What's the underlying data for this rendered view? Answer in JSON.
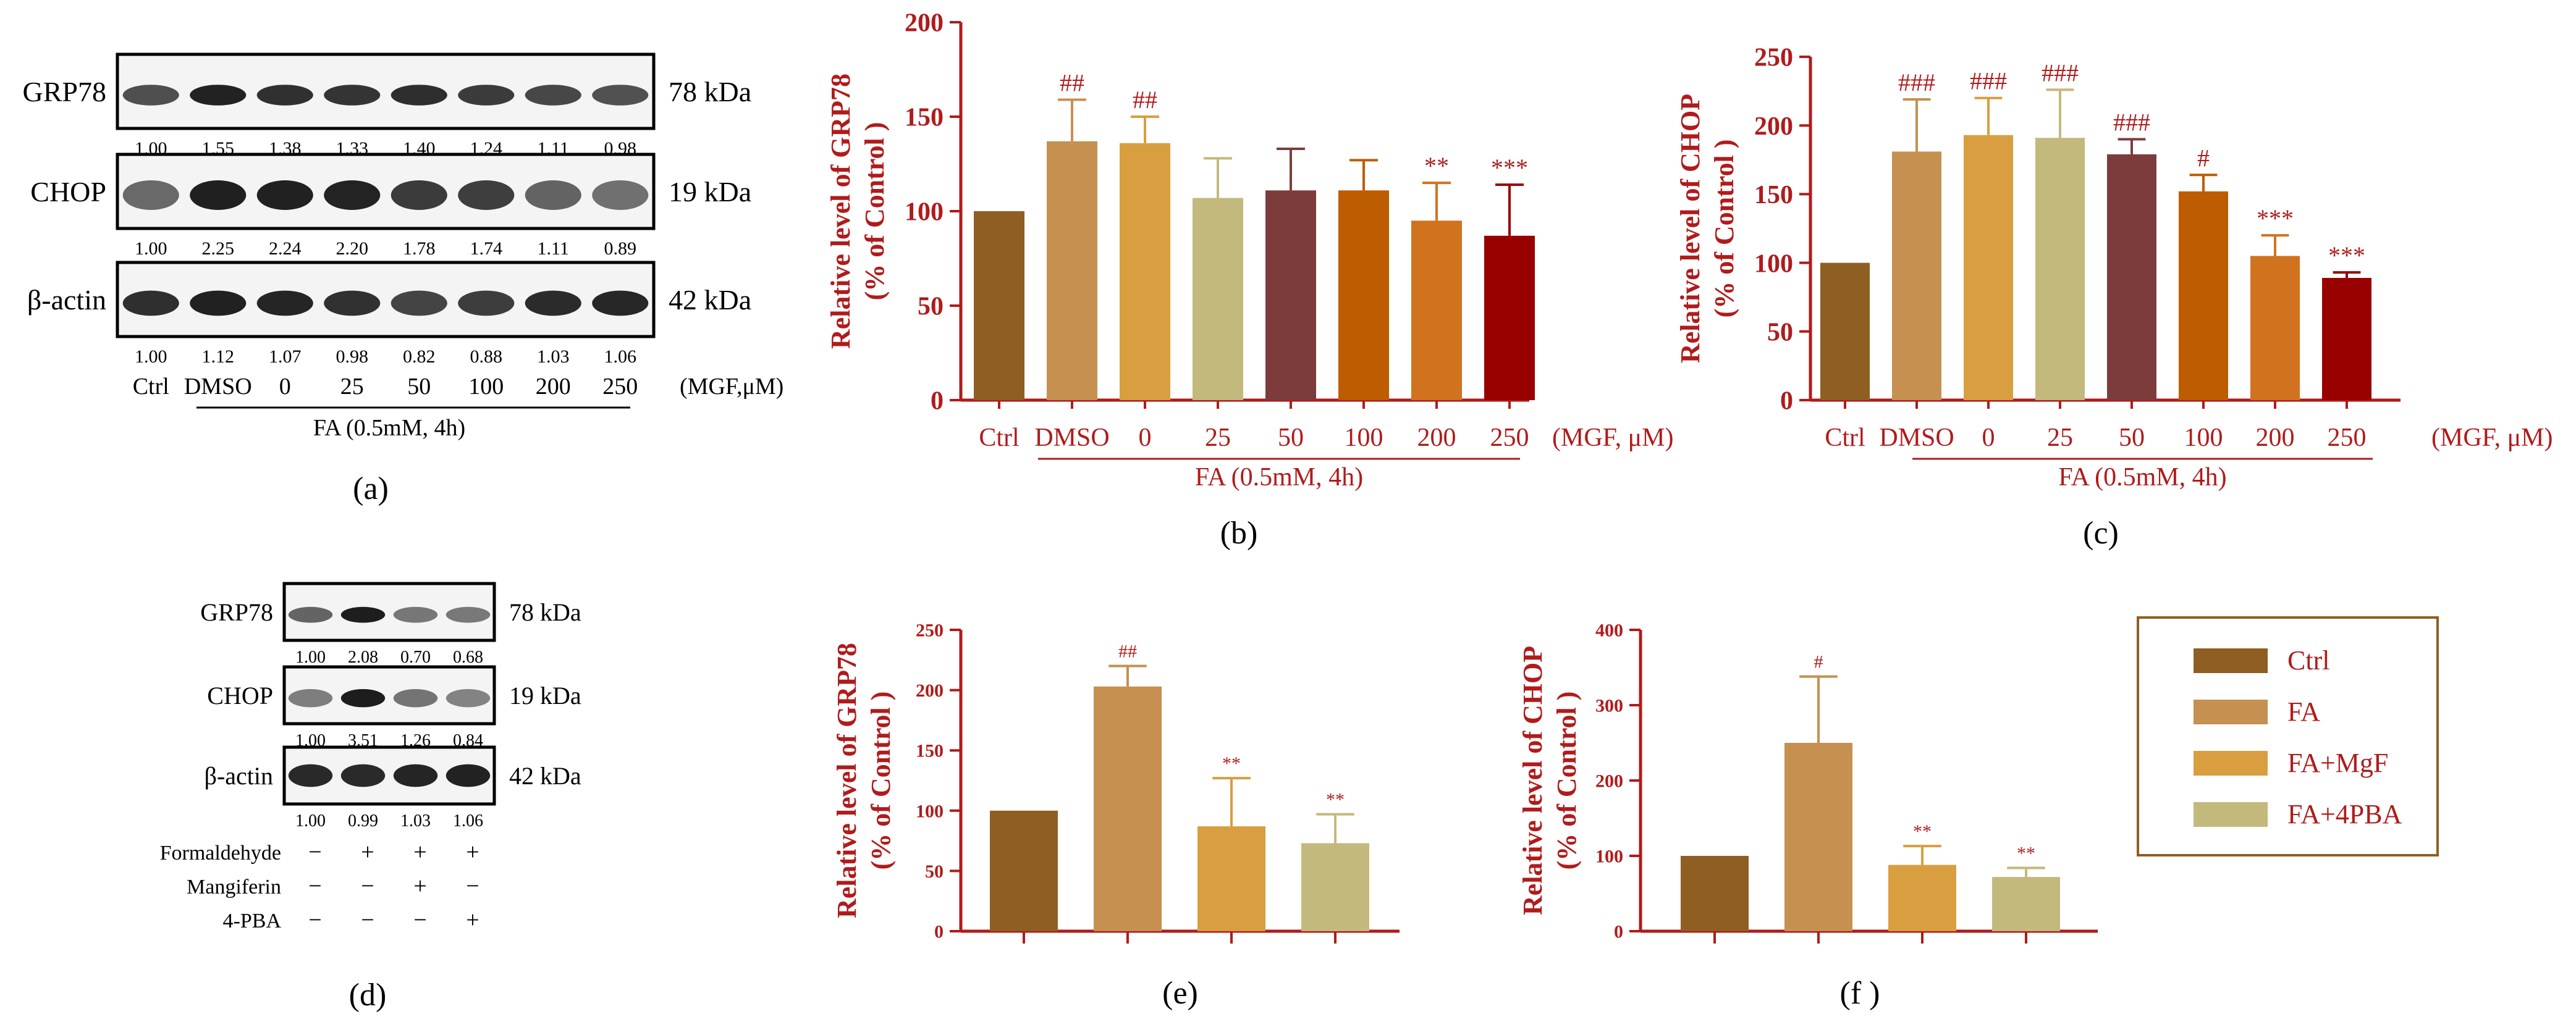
{
  "colors": {
    "axis": "#b01b1b",
    "ctrl": "#8f5e22",
    "fa": "#c59050",
    "dmso": "#c59050",
    "mgf0": "#d99e3f",
    "mgf25": "#c3b97c",
    "mgf50": "#7d3c3c",
    "mgf100": "#bd5c00",
    "mgf200": "#d1721f",
    "mgf250": "#980000",
    "famgf": "#d99e3f",
    "fa4pba": "#c3b97c"
  },
  "panel_a": {
    "label": "(a)",
    "rows": [
      {
        "protein": "GRP78",
        "kda": "78 kDa",
        "values": [
          "1.00",
          "1.55",
          "1.38",
          "1.33",
          "1.40",
          "1.24",
          "1.11",
          "0.98"
        ]
      },
      {
        "protein": "CHOP",
        "kda": "19 kDa",
        "values": [
          "1.00",
          "2.25",
          "2.24",
          "2.20",
          "1.78",
          "1.74",
          "1.11",
          "0.89"
        ]
      },
      {
        "protein": "β-actin",
        "kda": "42 kDa",
        "values": [
          "1.00",
          "1.12",
          "1.07",
          "0.98",
          "0.82",
          "0.88",
          "1.03",
          "1.06"
        ]
      }
    ],
    "lanes": [
      "Ctrl",
      "DMSO",
      "0",
      "25",
      "50",
      "100",
      "200",
      "250"
    ],
    "unit": "(MGF,μM)",
    "treatment": "FA (0.5mM, 4h)"
  },
  "panel_d": {
    "label": "(d)",
    "rows": [
      {
        "protein": "GRP78",
        "kda": "78 kDa",
        "values": [
          "1.00",
          "2.08",
          "0.70",
          "0.68"
        ]
      },
      {
        "protein": "CHOP",
        "kda": "19 kDa",
        "values": [
          "1.00",
          "3.51",
          "1.26",
          "0.84"
        ]
      },
      {
        "protein": "β-actin",
        "kda": "42 kDa",
        "values": [
          "1.00",
          "0.99",
          "1.03",
          "1.06"
        ]
      }
    ],
    "treatments": [
      {
        "name": "Formaldehyde",
        "signs": [
          "−",
          "+",
          "+",
          "+"
        ]
      },
      {
        "name": "Mangiferin",
        "signs": [
          "−",
          "−",
          "+",
          "−"
        ]
      },
      {
        "name": "4-PBA",
        "signs": [
          "−",
          "−",
          "−",
          "+"
        ]
      }
    ]
  },
  "legend": {
    "items": [
      {
        "label": "Ctrl",
        "color": "#8f5e22"
      },
      {
        "label": "FA",
        "color": "#c59050"
      },
      {
        "label": "FA+MgF",
        "color": "#d99e3f"
      },
      {
        "label": "FA+4PBA",
        "color": "#c3b97c"
      }
    ]
  },
  "chart_data": [
    {
      "id": "b",
      "label": "(b)",
      "type": "bar",
      "ylabel": "Relative level of GRP78",
      "ylabel2": "(% of Control )",
      "ylim": [
        0,
        200
      ],
      "yticks": [
        0,
        50,
        100,
        150,
        200
      ],
      "categories": [
        "Ctrl",
        "DMSO",
        "0",
        "25",
        "50",
        "100",
        "200",
        "250"
      ],
      "values": [
        100,
        137,
        136,
        107,
        111,
        111,
        95,
        87
      ],
      "errors": [
        0,
        22,
        14,
        21,
        22,
        16,
        20,
        27
      ],
      "annotations": [
        "",
        "##",
        "##",
        "",
        "",
        "",
        "**",
        "***"
      ],
      "colors": [
        "#8f5e22",
        "#c59050",
        "#d99e3f",
        "#c3b97c",
        "#7d3c3c",
        "#bd5c00",
        "#d1721f",
        "#980000"
      ],
      "unit": "(MGF, μM)",
      "treatment": "FA (0.5mM, 4h)"
    },
    {
      "id": "c",
      "label": "(c)",
      "type": "bar",
      "ylabel": "Relative level of CHOP",
      "ylabel2": "(% of Control )",
      "ylim": [
        0,
        250
      ],
      "yticks": [
        0,
        50,
        100,
        150,
        200,
        250
      ],
      "categories": [
        "Ctrl",
        "DMSO",
        "0",
        "25",
        "50",
        "100",
        "200",
        "250"
      ],
      "values": [
        100,
        181,
        193,
        191,
        179,
        152,
        105,
        89
      ],
      "errors": [
        0,
        38,
        27,
        35,
        11,
        12,
        15,
        4
      ],
      "annotations": [
        "",
        "###",
        "###",
        "###",
        "###",
        "#",
        "***",
        "***"
      ],
      "colors": [
        "#8f5e22",
        "#c59050",
        "#d99e3f",
        "#c3b97c",
        "#7d3c3c",
        "#bd5c00",
        "#d1721f",
        "#980000"
      ],
      "unit": "(MGF, μM)",
      "treatment": "FA (0.5mM, 4h)"
    },
    {
      "id": "e",
      "label": "(e)",
      "type": "bar",
      "ylabel": "Relative level of GRP78",
      "ylabel2": "(% of Control )",
      "ylim": [
        0,
        250
      ],
      "yticks": [
        0,
        50,
        100,
        150,
        200,
        250
      ],
      "categories": [
        "Ctrl",
        "FA",
        "FA+MgF",
        "FA+4PBA"
      ],
      "values": [
        100,
        203,
        87,
        73
      ],
      "errors": [
        0,
        17,
        40,
        24
      ],
      "annotations": [
        "",
        "##",
        "**",
        "**"
      ],
      "colors": [
        "#8f5e22",
        "#c59050",
        "#d99e3f",
        "#c3b97c"
      ]
    },
    {
      "id": "f",
      "label": "(f )",
      "type": "bar",
      "ylabel": "Relative level of CHOP",
      "ylabel2": "(% of Control )",
      "ylim": [
        0,
        400
      ],
      "yticks": [
        0,
        100,
        200,
        300,
        400
      ],
      "categories": [
        "Ctrl",
        "FA",
        "FA+MgF",
        "FA+4PBA"
      ],
      "values": [
        100,
        250,
        88,
        72
      ],
      "errors": [
        0,
        88,
        25,
        12
      ],
      "annotations": [
        "",
        "#",
        "**",
        "**"
      ],
      "colors": [
        "#8f5e22",
        "#c59050",
        "#d99e3f",
        "#c3b97c"
      ]
    }
  ]
}
